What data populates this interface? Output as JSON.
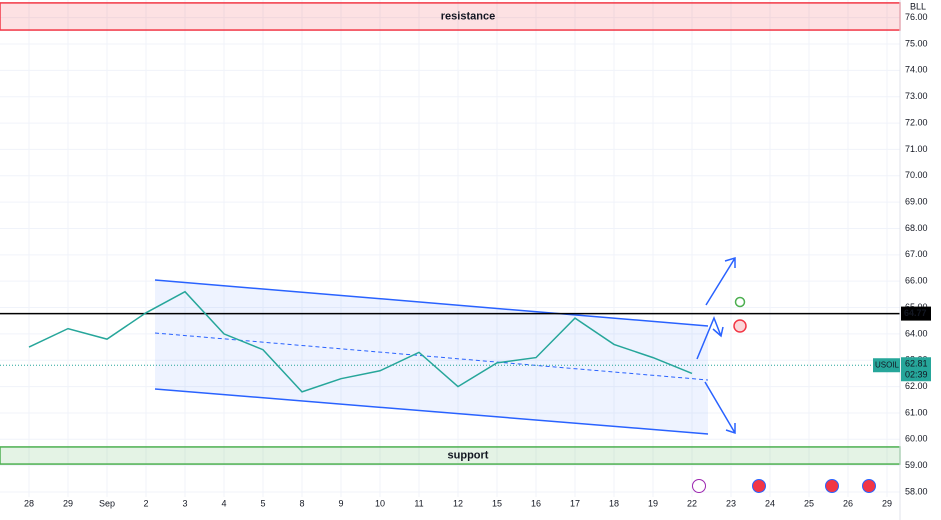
{
  "chart_data": {
    "type": "line",
    "symbol": "USOIL",
    "unit": "BLL",
    "countdown": "02:39",
    "categories": [
      "28",
      "29",
      "Sep",
      "2",
      "3",
      "4",
      "5",
      "8",
      "9",
      "10",
      "11",
      "12",
      "15",
      "16",
      "17",
      "18",
      "19",
      "22",
      "23",
      "24",
      "25",
      "26",
      "29"
    ],
    "series": [
      {
        "name": "USOIL",
        "color": "#26a69a",
        "values": [
          63.5,
          64.2,
          63.8,
          64.8,
          65.6,
          64.0,
          63.4,
          61.8,
          62.3,
          62.6,
          63.3,
          62.0,
          62.9,
          63.1,
          64.6,
          63.6,
          63.1,
          62.5,
          null,
          null,
          null,
          null,
          null
        ]
      }
    ],
    "last_price": 62.81,
    "horizontal_line": 64.77,
    "zones": [
      {
        "label": "resistance",
        "from": 75.53,
        "to": 76.56,
        "color": "#f23645"
      },
      {
        "label": "support",
        "from": 59.06,
        "to": 59.71,
        "color": "#4caf50"
      }
    ],
    "ylim": [
      58,
      76.67
    ],
    "yticks": [
      {
        "value": 58,
        "label": "58.00"
      },
      {
        "value": 59,
        "label": "59.00"
      },
      {
        "value": 60,
        "label": "60.00"
      },
      {
        "value": 61,
        "label": "61.00"
      },
      {
        "value": 62,
        "label": "62.00"
      },
      {
        "value": 63,
        "label": "63.00"
      },
      {
        "value": 64,
        "label": "64.00"
      },
      {
        "value": 65,
        "label": "65.00"
      },
      {
        "value": 66,
        "label": "66.00"
      },
      {
        "value": 67,
        "label": "67.00"
      },
      {
        "value": 68,
        "label": "68.00"
      },
      {
        "value": 69,
        "label": "69.00"
      },
      {
        "value": 70,
        "label": "70.00"
      },
      {
        "value": 71,
        "label": "71.00"
      },
      {
        "value": 72,
        "label": "72.00"
      },
      {
        "value": 73,
        "label": "73.00"
      },
      {
        "value": 74,
        "label": "74.00"
      },
      {
        "value": 75,
        "label": "75.00"
      },
      {
        "value": 76,
        "label": "76.00"
      }
    ],
    "grid": true
  }
}
